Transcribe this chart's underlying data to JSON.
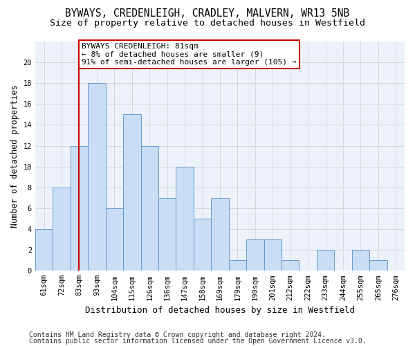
{
  "title1": "BYWAYS, CREDENLEIGH, CRADLEY, MALVERN, WR13 5NB",
  "title2": "Size of property relative to detached houses in Westfield",
  "xlabel": "Distribution of detached houses by size in Westfield",
  "ylabel": "Number of detached properties",
  "categories": [
    "61sqm",
    "72sqm",
    "83sqm",
    "93sqm",
    "104sqm",
    "115sqm",
    "126sqm",
    "136sqm",
    "147sqm",
    "158sqm",
    "169sqm",
    "179sqm",
    "190sqm",
    "201sqm",
    "212sqm",
    "222sqm",
    "233sqm",
    "244sqm",
    "255sqm",
    "265sqm",
    "276sqm"
  ],
  "values": [
    4,
    8,
    12,
    18,
    6,
    15,
    12,
    7,
    10,
    5,
    7,
    1,
    3,
    3,
    1,
    0,
    2,
    0,
    2,
    1,
    0
  ],
  "bar_color": "#c9ddf5",
  "bar_edge_color": "#6699cc",
  "vline_x_index": 2,
  "vline_color": "#cc0000",
  "annotation_line1": "BYWAYS CREDENLEIGH: 81sqm",
  "annotation_line2": "← 8% of detached houses are smaller (9)",
  "annotation_line3": "91% of semi-detached houses are larger (105) →",
  "annotation_box_color": "#ffffff",
  "annotation_box_edge": "#cc0000",
  "ylim_max": 22,
  "yticks": [
    0,
    2,
    4,
    6,
    8,
    10,
    12,
    14,
    16,
    18,
    20
  ],
  "footer1": "Contains HM Land Registry data © Crown copyright and database right 2024.",
  "footer2": "Contains public sector information licensed under the Open Government Licence v3.0.",
  "bg_color": "#edf2fa",
  "title_fontsize": 10.5,
  "subtitle_fontsize": 9.5,
  "axis_label_fontsize": 8.5,
  "tick_fontsize": 7.5,
  "annot_fontsize": 8.0,
  "footer_fontsize": 7.0
}
